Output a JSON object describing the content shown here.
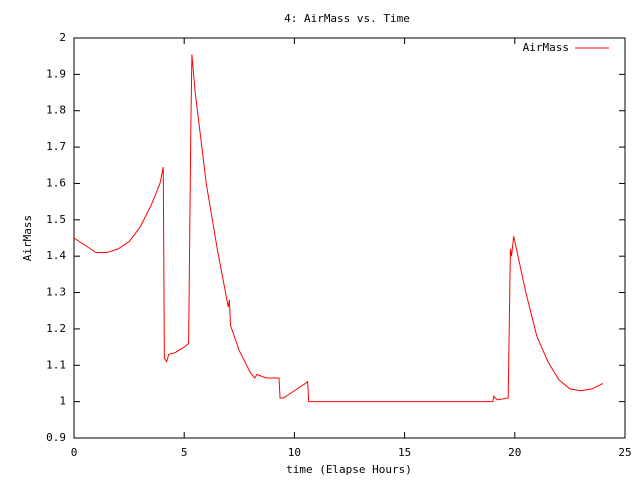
{
  "chart_data": {
    "type": "line",
    "title": "4: AirMass vs. Time",
    "xlabel": "time (Elapse Hours)",
    "ylabel": "AirMass",
    "x": [
      0,
      0.5,
      1,
      1.5,
      2,
      2.5,
      3,
      3.5,
      3.9,
      4.0,
      4.05,
      4.1,
      4.2,
      4.3,
      4.6,
      5.0,
      5.2,
      5.3,
      5.35,
      5.5,
      6.0,
      6.5,
      7.0,
      7.05,
      7.1,
      7.5,
      8.0,
      8.2,
      8.3,
      8.7,
      9.3,
      9.35,
      9.5,
      10,
      10.5,
      10.6,
      10.65,
      19.0,
      19.05,
      19.2,
      19.7,
      19.8,
      19.85,
      19.95,
      20.5,
      21,
      21.5,
      22,
      22.5,
      23,
      23.5,
      24
    ],
    "series": [
      {
        "name": "AirMass",
        "color": "#ff0000",
        "values": [
          1.45,
          1.43,
          1.41,
          1.41,
          1.42,
          1.44,
          1.48,
          1.54,
          1.6,
          1.63,
          1.645,
          1.12,
          1.11,
          1.13,
          1.135,
          1.15,
          1.16,
          1.75,
          1.955,
          1.85,
          1.6,
          1.42,
          1.26,
          1.28,
          1.21,
          1.14,
          1.08,
          1.065,
          1.075,
          1.065,
          1.065,
          1.01,
          1.01,
          1.03,
          1.05,
          1.055,
          1.0,
          1.0,
          1.015,
          1.005,
          1.01,
          1.42,
          1.4,
          1.455,
          1.3,
          1.18,
          1.11,
          1.06,
          1.035,
          1.03,
          1.035,
          1.05
        ]
      }
    ],
    "xlim": [
      0,
      25
    ],
    "xticks": [
      0,
      5,
      10,
      15,
      20,
      25
    ],
    "ylim": [
      0.9,
      2
    ],
    "yticks": [
      0.9,
      1,
      1.1,
      1.2,
      1.3,
      1.4,
      1.5,
      1.6,
      1.7,
      1.8,
      1.9,
      2
    ],
    "legend": "top-right"
  }
}
